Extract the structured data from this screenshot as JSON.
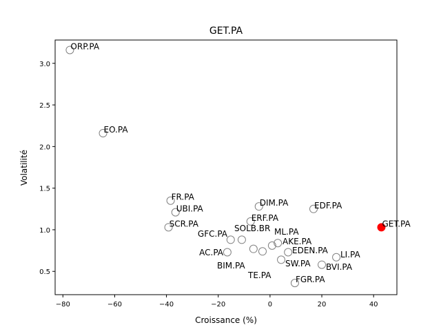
{
  "chart_data": {
    "type": "scatter",
    "title": "GET.PA",
    "xlabel": "Croissance (%)",
    "ylabel": "Volatilité",
    "xlim": [
      -83,
      49
    ],
    "ylim": [
      0.22,
      3.28
    ],
    "xticks": [
      -80,
      -60,
      -40,
      -20,
      0,
      20,
      40
    ],
    "yticks": [
      0.5,
      1.0,
      1.5,
      2.0,
      2.5,
      3.0
    ],
    "xtick_labels": [
      "−80",
      "−60",
      "−40",
      "−20",
      "0",
      "20",
      "40"
    ],
    "ytick_labels": [
      "0.5",
      "1.0",
      "1.5",
      "2.0",
      "2.5",
      "3.0"
    ],
    "highlight_color": "#ff0000",
    "marker_edge_color": "#808080",
    "points": [
      {
        "label": "ORP.PA",
        "x": -77.3,
        "y": 3.16,
        "highlight": false
      },
      {
        "label": "EO.PA",
        "x": -64.5,
        "y": 2.16,
        "highlight": false
      },
      {
        "label": "FR.PA",
        "x": -38.4,
        "y": 1.35,
        "highlight": false
      },
      {
        "label": "UBI.PA",
        "x": -36.5,
        "y": 1.21,
        "highlight": false
      },
      {
        "label": "SCR.PA",
        "x": -39.2,
        "y": 1.03,
        "highlight": false
      },
      {
        "label": "DIM.PA",
        "x": -4.3,
        "y": 1.28,
        "highlight": false
      },
      {
        "label": "ERF.PA",
        "x": -7.5,
        "y": 1.1,
        "highlight": false
      },
      {
        "label": "EDF.PA",
        "x": 16.8,
        "y": 1.25,
        "highlight": false
      },
      {
        "label": "GET.PA",
        "x": 43.0,
        "y": 1.03,
        "highlight": true
      },
      {
        "label": "GFC.PA",
        "x": -15.2,
        "y": 0.88,
        "highlight": false
      },
      {
        "label": "SOLB.BR",
        "x": -10.9,
        "y": 0.88,
        "highlight": false
      },
      {
        "label": "AC.PA",
        "x": -16.5,
        "y": 0.73,
        "highlight": false
      },
      {
        "label": "BIM.PA",
        "x": -6.4,
        "y": 0.77,
        "highlight": false
      },
      {
        "label": "TE.PA",
        "x": -2.9,
        "y": 0.74,
        "highlight": false
      },
      {
        "label": "ML.PA",
        "x": 0.8,
        "y": 0.81,
        "highlight": false
      },
      {
        "label": "AKE.PA",
        "x": 3.0,
        "y": 0.84,
        "highlight": false
      },
      {
        "label": "EDEN.PA",
        "x": 7.0,
        "y": 0.73,
        "highlight": false
      },
      {
        "label": "SW.PA",
        "x": 4.3,
        "y": 0.64,
        "highlight": false
      },
      {
        "label": "LI.PA",
        "x": 25.6,
        "y": 0.67,
        "highlight": false
      },
      {
        "label": "BVI.PA",
        "x": 20.0,
        "y": 0.58,
        "highlight": false
      },
      {
        "label": "FGR.PA",
        "x": 9.6,
        "y": 0.36,
        "highlight": false
      }
    ]
  }
}
